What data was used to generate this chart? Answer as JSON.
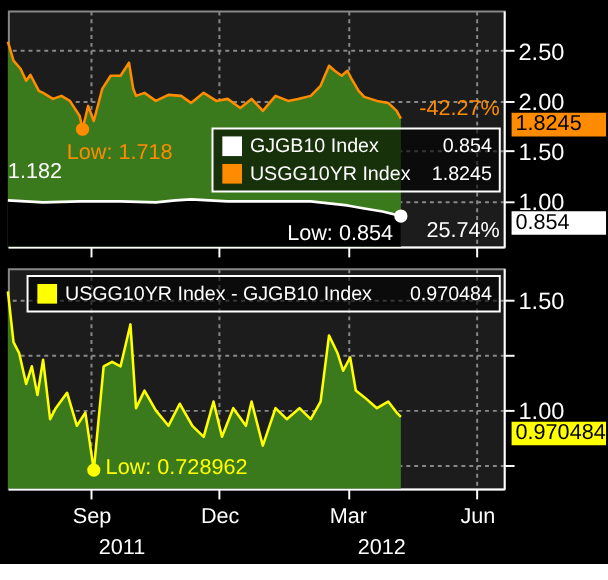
{
  "chart_data": [
    {
      "type": "area",
      "xlim": [
        "2011-07-04",
        "2012-06-20"
      ],
      "xticks": [
        {
          "value": "2011-09-01",
          "label": null
        },
        {
          "value": "2011-12-01",
          "label": null
        },
        {
          "value": "2012-03-01",
          "label": null
        },
        {
          "value": "2012-06-01",
          "label": null
        }
      ],
      "ylim": [
        0.55,
        2.9
      ],
      "yticks": [
        {
          "value": 1.0,
          "label": "1.00"
        },
        {
          "value": 1.5,
          "label": "1.50"
        },
        {
          "value": 2.0,
          "label": "2.00"
        },
        {
          "value": 2.5,
          "label": "2.50"
        }
      ],
      "tick_labels": "y",
      "grid": true,
      "legend": "right",
      "series": [
        {
          "name": "GJGB10 Index",
          "color": "#ffffff",
          "x": [
            "2011-07-04",
            "2011-07-29",
            "2011-08-24",
            "2011-09-22",
            "2011-10-17",
            "2011-10-31",
            "2011-11-11",
            "2011-12-07",
            "2012-01-10",
            "2012-02-04",
            "2012-02-17",
            "2012-03-01",
            "2012-03-13",
            "2012-03-26",
            "2012-04-08"
          ],
          "values": [
            1.01,
            0.99,
            1.0,
            1.0,
            0.99,
            1.01,
            1.02,
            1.0,
            1.0,
            1.0,
            0.98,
            0.96,
            0.93,
            0.9,
            0.854
          ]
        },
        {
          "name": "USGG10YR Index",
          "color": "#ff8c00",
          "x": [
            "2011-07-04",
            "2011-07-08",
            "2011-07-13",
            "2011-07-17",
            "2011-07-20",
            "2011-07-26",
            "2011-07-29",
            "2011-08-05",
            "2011-08-11",
            "2011-08-17",
            "2011-08-24",
            "2011-08-26",
            "2011-08-30",
            "2011-09-03",
            "2011-09-09",
            "2011-09-15",
            "2011-09-22",
            "2011-09-28",
            "2011-10-01",
            "2011-10-03",
            "2011-10-09",
            "2011-10-17",
            "2011-10-26",
            "2011-11-04",
            "2011-11-11",
            "2011-11-20",
            "2011-11-29",
            "2011-12-07",
            "2011-12-16",
            "2011-12-24",
            "2012-01-01",
            "2012-01-10",
            "2012-01-19",
            "2012-01-26",
            "2012-02-04",
            "2012-02-11",
            "2012-02-17",
            "2012-02-21",
            "2012-02-26",
            "2012-03-01",
            "2012-03-04",
            "2012-03-09",
            "2012-03-13",
            "2012-03-22",
            "2012-03-30",
            "2012-04-05",
            "2012-04-08"
          ],
          "values": [
            2.59,
            2.4,
            2.32,
            2.2,
            2.26,
            2.1,
            2.08,
            2.02,
            2.05,
            2.0,
            1.85,
            1.718,
            1.95,
            1.8,
            2.12,
            2.25,
            2.25,
            2.38,
            2.12,
            2.05,
            2.08,
            2.0,
            2.06,
            2.05,
            1.98,
            2.08,
            2.0,
            2.02,
            1.93,
            2.02,
            1.9,
            2.05,
            2.0,
            2.02,
            2.05,
            2.15,
            2.35,
            2.3,
            2.25,
            2.3,
            2.22,
            2.1,
            2.04,
            2.0,
            1.98,
            1.9,
            1.8245
          ]
        }
      ],
      "annotations": [
        "1.182",
        "-42.27%",
        "25.74%",
        {
          "text": "Low: 1.718",
          "x": "2011-08-26",
          "y": 1.718
        },
        {
          "text": "Low: 0.854",
          "x": "2012-04-08",
          "y": 0.854
        },
        "1.8245",
        "0.854"
      ]
    },
    {
      "type": "area",
      "xlim": [
        "2011-07-04",
        "2012-06-20"
      ],
      "xticks": [
        {
          "value": "2011-09-01",
          "label": "Sep"
        },
        {
          "value": "2011-12-01",
          "label": "Dec"
        },
        {
          "value": "2012-03-01",
          "label": "Mar"
        },
        {
          "value": "2012-06-01",
          "label": "Jun"
        }
      ],
      "ylim": [
        0.645,
        1.645
      ],
      "yticks": [
        {
          "value": 0.75,
          "label": null
        },
        {
          "value": 1.0,
          "label": "1.00"
        },
        {
          "value": 1.25,
          "label": null
        },
        {
          "value": 1.5,
          "label": "1.50"
        }
      ],
      "grid": true,
      "legend": "top",
      "series": [
        {
          "name": "USGG10YR Index - GJGB10 Index",
          "color": "#ffff00",
          "x": [
            "2011-07-04",
            "2011-07-08",
            "2011-07-12",
            "2011-07-17",
            "2011-07-21",
            "2011-07-25",
            "2011-07-29",
            "2011-08-03",
            "2011-08-07",
            "2011-08-15",
            "2011-08-22",
            "2011-08-28",
            "2011-09-03",
            "2011-09-10",
            "2011-09-16",
            "2011-09-22",
            "2011-09-29",
            "2011-10-03",
            "2011-10-09",
            "2011-10-17",
            "2011-10-26",
            "2011-11-03",
            "2011-11-12",
            "2011-11-20",
            "2011-11-27",
            "2011-12-03",
            "2011-12-11",
            "2011-12-20",
            "2011-12-24",
            "2012-01-01",
            "2012-01-10",
            "2012-01-18",
            "2012-01-27",
            "2012-02-04",
            "2012-02-11",
            "2012-02-17",
            "2012-02-23",
            "2012-02-27",
            "2012-03-03",
            "2012-03-07",
            "2012-03-13",
            "2012-03-22",
            "2012-03-30",
            "2012-04-05",
            "2012-04-08"
          ],
          "values": [
            1.54,
            1.31,
            1.26,
            1.12,
            1.2,
            1.07,
            1.23,
            0.96,
            1.01,
            1.08,
            0.93,
            0.99,
            0.728962,
            1.2,
            1.22,
            1.2,
            1.39,
            1.01,
            1.09,
            1.0,
            0.93,
            1.03,
            0.93,
            0.88,
            1.04,
            0.88,
            1.01,
            0.93,
            1.04,
            0.84,
            1.01,
            0.96,
            1.01,
            0.96,
            1.04,
            1.34,
            1.26,
            1.18,
            1.24,
            1.09,
            1.06,
            1.01,
            1.04,
            0.99,
            0.970484
          ]
        }
      ],
      "annotations": [
        "2011",
        "2012",
        {
          "text": "Low: 0.728962",
          "x": "2011-09-03",
          "y": 0.728962
        },
        "0.970484"
      ]
    }
  ]
}
